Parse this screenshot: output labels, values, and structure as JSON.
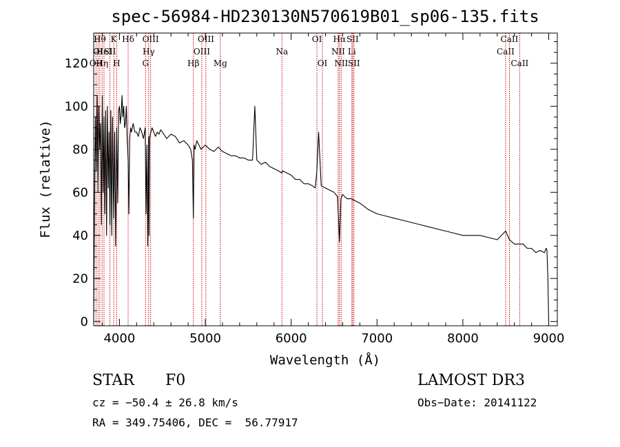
{
  "chart_data": {
    "type": "line",
    "title": "spec-56984-HD230130N570619B01_sp06-135.fits",
    "xlabel": "Wavelength (Å)",
    "ylabel": "Flux (relative)",
    "xlim": [
      3700,
      9100
    ],
    "ylim": [
      -2,
      134
    ],
    "xticks": [
      4000,
      5000,
      6000,
      7000,
      8000,
      9000
    ],
    "yticks": [
      0,
      20,
      40,
      60,
      80,
      100,
      120
    ],
    "grid": false,
    "series": [
      {
        "name": "flux",
        "x": [
          3700,
          3710,
          3720,
          3730,
          3740,
          3750,
          3760,
          3770,
          3780,
          3790,
          3800,
          3810,
          3820,
          3830,
          3840,
          3850,
          3860,
          3870,
          3880,
          3889,
          3900,
          3910,
          3920,
          3933,
          3945,
          3955,
          3968,
          3980,
          3990,
          4000,
          4010,
          4020,
          4030,
          4040,
          4050,
          4060,
          4070,
          4080,
          4090,
          4101,
          4110,
          4120,
          4130,
          4140,
          4150,
          4160,
          4180,
          4200,
          4220,
          4240,
          4260,
          4280,
          4300,
          4310,
          4320,
          4330,
          4340,
          4345,
          4350,
          4360,
          4380,
          4400,
          4420,
          4440,
          4460,
          4480,
          4500,
          4550,
          4600,
          4650,
          4700,
          4750,
          4800,
          4830,
          4850,
          4861,
          4870,
          4880,
          4900,
          4950,
          5000,
          5050,
          5100,
          5150,
          5200,
          5250,
          5300,
          5350,
          5400,
          5450,
          5500,
          5550,
          5577,
          5600,
          5650,
          5700,
          5750,
          5800,
          5850,
          5893,
          5900,
          5950,
          6000,
          6050,
          6100,
          6150,
          6200,
          6250,
          6280,
          6300,
          6320,
          6350,
          6400,
          6450,
          6500,
          6540,
          6563,
          6580,
          6600,
          6650,
          6700,
          6750,
          6800,
          6900,
          7000,
          7100,
          7200,
          7300,
          7400,
          7500,
          7600,
          7700,
          7800,
          7900,
          8000,
          8100,
          8200,
          8300,
          8400,
          8498,
          8542,
          8600,
          8662,
          8700,
          8750,
          8800,
          8850,
          8900,
          8950,
          8970,
          8980,
          8990,
          9000
        ],
        "values": [
          0,
          55,
          95,
          70,
          105,
          60,
          100,
          80,
          92,
          45,
          105,
          60,
          95,
          50,
          98,
          40,
          100,
          62,
          88,
          45,
          98,
          40,
          95,
          48,
          88,
          35,
          90,
          55,
          98,
          100,
          92,
          96,
          105,
          95,
          100,
          90,
          92,
          100,
          85,
          75,
          50,
          85,
          90,
          88,
          90,
          92,
          88,
          88,
          86,
          90,
          88,
          85,
          90,
          50,
          82,
          35,
          86,
          40,
          85,
          87,
          90,
          88,
          86,
          88,
          87,
          89,
          88,
          85,
          87,
          86,
          83,
          84,
          82,
          80,
          75,
          48,
          82,
          80,
          84,
          80,
          82,
          80,
          79,
          81,
          79,
          78,
          77,
          77,
          76,
          76,
          75,
          75,
          100,
          75,
          73,
          74,
          72,
          71,
          70,
          69,
          70,
          69,
          68,
          66,
          66,
          64,
          64,
          63,
          62,
          70,
          88,
          63,
          62,
          61,
          60,
          58,
          37,
          57,
          59,
          57,
          57,
          56,
          55,
          52,
          50,
          49,
          48,
          47,
          46,
          45,
          44,
          43,
          42,
          41,
          40,
          40,
          40,
          39,
          38,
          42,
          38,
          36,
          36,
          36,
          34,
          34,
          32,
          33,
          32,
          34,
          33,
          20,
          0
        ]
      }
    ],
    "lines": [
      {
        "wl": 3727,
        "label": "OII",
        "row": 2
      },
      {
        "wl": 3750,
        "label": "OI",
        "row": 1
      },
      {
        "wl": 3771,
        "label": "Hθ",
        "row": 0
      },
      {
        "wl": 3798,
        "label": "Hη",
        "row": 2
      },
      {
        "wl": 3820,
        "label": "HeI",
        "row": 1
      },
      {
        "wl": 3889,
        "label": "SII",
        "row": 1
      },
      {
        "wl": 3934,
        "label": "K",
        "row": 0
      },
      {
        "wl": 3968,
        "label": "H",
        "row": 2
      },
      {
        "wl": 4101,
        "label": "Hδ",
        "row": 0
      },
      {
        "wl": 4304,
        "label": "G",
        "row": 2
      },
      {
        "wl": 4340,
        "label": "Hγ",
        "row": 1
      },
      {
        "wl": 4363,
        "label": "OIII",
        "row": 0
      },
      {
        "wl": 4861,
        "label": "Hβ",
        "row": 2
      },
      {
        "wl": 4959,
        "label": "OIII",
        "row": 1
      },
      {
        "wl": 5007,
        "label": "OIII",
        "row": 0
      },
      {
        "wl": 5175,
        "label": "Mg",
        "row": 2
      },
      {
        "wl": 5893,
        "label": "Na",
        "row": 1
      },
      {
        "wl": 6300,
        "label": "OI",
        "row": 0
      },
      {
        "wl": 6364,
        "label": "OI",
        "row": 2
      },
      {
        "wl": 6548,
        "label": "NII",
        "row": 1
      },
      {
        "wl": 6563,
        "label": "Hα",
        "row": 0
      },
      {
        "wl": 6583,
        "label": "NII",
        "row": 2
      },
      {
        "wl": 6707,
        "label": "Li",
        "row": 1
      },
      {
        "wl": 6716,
        "label": "SII",
        "row": 0
      },
      {
        "wl": 6731,
        "label": "SII",
        "row": 2
      },
      {
        "wl": 8498,
        "label": "CaII",
        "row": 1
      },
      {
        "wl": 8542,
        "label": "CaII",
        "row": 0
      },
      {
        "wl": 8662,
        "label": "CaII",
        "row": 2
      }
    ]
  },
  "footer": {
    "object_type": "STAR",
    "subclass": "F0",
    "survey": "LAMOST DR3",
    "cz": "cz = −50.4 ± 26.8 km/s",
    "obs_date": "Obs−Date: 20141122",
    "coords": "RA = 349.75406, DEC =  56.77917"
  },
  "colors": {
    "spectrum": "#000000",
    "marker_lines": "#cc0000"
  }
}
